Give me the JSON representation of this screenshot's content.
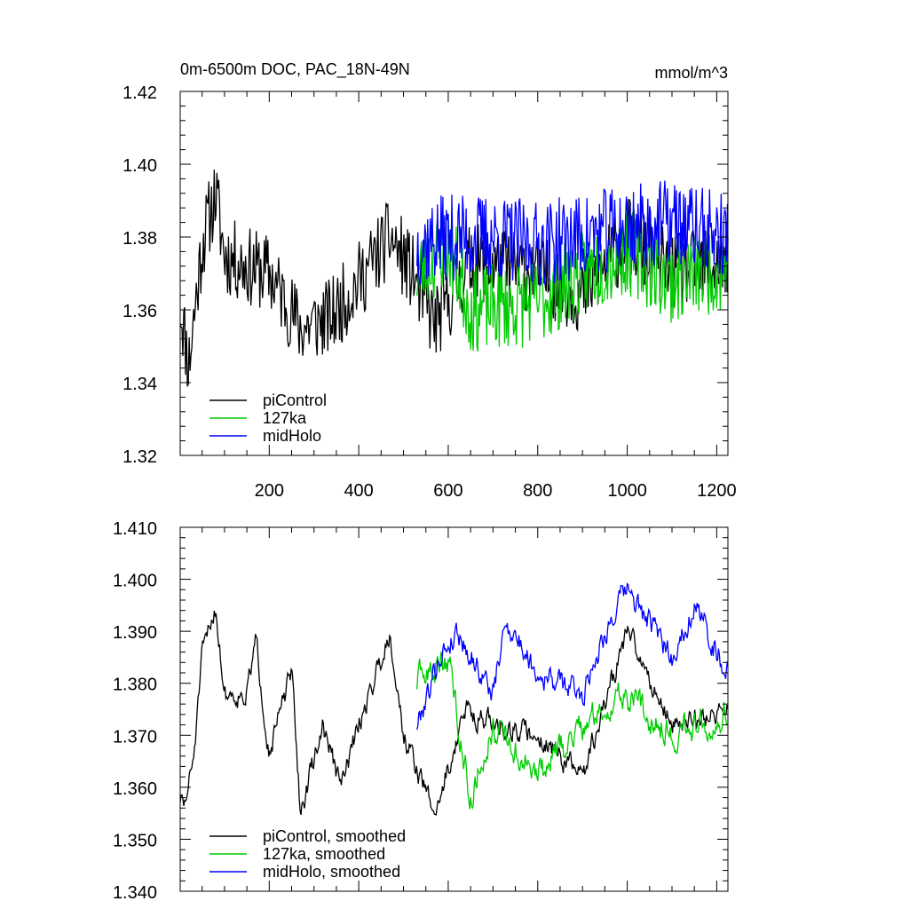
{
  "chart_data": [
    {
      "type": "line",
      "title": "0m-6500m DOC, PAC_18N-49N",
      "units": "mmol/m^3",
      "xlabel": "",
      "ylabel": "",
      "xlim": [
        1,
        1225
      ],
      "ylim": [
        1.32,
        1.42
      ],
      "x_ticks": [
        200,
        400,
        600,
        800,
        1000,
        1200
      ],
      "x_tick_labels": [
        "200",
        "400",
        "600",
        "800",
        "1000",
        "1200"
      ],
      "y_ticks": [
        1.32,
        1.34,
        1.36,
        1.38,
        1.4,
        1.42
      ],
      "y_tick_labels": [
        "1.32",
        "1.34",
        "1.36",
        "1.38",
        "1.40",
        "1.42"
      ],
      "legend_position": "bottom-left",
      "series": [
        {
          "name": "piControl",
          "color": "#000000",
          "x_start": 1,
          "x_end": 1225,
          "mean": 1.372,
          "noise": 0.011,
          "seed": 11,
          "anchors": [
            [
              1,
              1.362
            ],
            [
              20,
              1.345
            ],
            [
              50,
              1.378
            ],
            [
              80,
              1.392
            ],
            [
              100,
              1.375
            ],
            [
              150,
              1.372
            ],
            [
              200,
              1.37
            ],
            [
              270,
              1.355
            ],
            [
              340,
              1.358
            ],
            [
              400,
              1.368
            ],
            [
              470,
              1.38
            ],
            [
              520,
              1.37
            ],
            [
              570,
              1.356
            ],
            [
              650,
              1.373
            ],
            [
              800,
              1.37
            ],
            [
              900,
              1.364
            ],
            [
              1000,
              1.38
            ],
            [
              1100,
              1.37
            ],
            [
              1225,
              1.373
            ]
          ]
        },
        {
          "name": "127ka",
          "color": "#00cc00",
          "x_start": 530,
          "x_end": 1225,
          "mean": 1.37,
          "noise": 0.012,
          "seed": 23,
          "anchors": [
            [
              530,
              1.37
            ],
            [
              600,
              1.378
            ],
            [
              650,
              1.36
            ],
            [
              800,
              1.362
            ],
            [
              900,
              1.37
            ],
            [
              1000,
              1.376
            ],
            [
              1100,
              1.368
            ],
            [
              1225,
              1.372
            ]
          ]
        },
        {
          "name": "midHolo",
          "color": "#0000ff",
          "x_start": 530,
          "x_end": 1225,
          "mean": 1.38,
          "noise": 0.012,
          "seed": 37,
          "anchors": [
            [
              530,
              1.378
            ],
            [
              600,
              1.38
            ],
            [
              700,
              1.38
            ],
            [
              800,
              1.378
            ],
            [
              900,
              1.38
            ],
            [
              1000,
              1.383
            ],
            [
              1100,
              1.384
            ],
            [
              1225,
              1.38
            ]
          ]
        }
      ]
    },
    {
      "type": "line",
      "title": "",
      "xlabel": "",
      "ylabel": "",
      "xlim": [
        1,
        1225
      ],
      "ylim": [
        1.34,
        1.41
      ],
      "x_ticks": [
        200,
        400,
        600,
        800,
        1000,
        1200
      ],
      "y_ticks": [
        1.34,
        1.35,
        1.36,
        1.37,
        1.38,
        1.39,
        1.4,
        1.41
      ],
      "y_tick_labels": [
        "1.340",
        "1.350",
        "1.360",
        "1.370",
        "1.380",
        "1.390",
        "1.400",
        "1.410"
      ],
      "legend_position": "bottom-left",
      "series": [
        {
          "name": "piControl, smoothed",
          "color": "#000000",
          "x_start": 1,
          "x_end": 1225,
          "noise": 0.0045,
          "seed": 51,
          "anchors": [
            [
              1,
              1.358
            ],
            [
              10,
              1.356
            ],
            [
              30,
              1.365
            ],
            [
              50,
              1.385
            ],
            [
              80,
              1.395
            ],
            [
              100,
              1.378
            ],
            [
              150,
              1.378
            ],
            [
              170,
              1.388
            ],
            [
              200,
              1.367
            ],
            [
              250,
              1.382
            ],
            [
              270,
              1.355
            ],
            [
              320,
              1.372
            ],
            [
              360,
              1.36
            ],
            [
              400,
              1.372
            ],
            [
              470,
              1.39
            ],
            [
              500,
              1.37
            ],
            [
              570,
              1.355
            ],
            [
              640,
              1.375
            ],
            [
              700,
              1.372
            ],
            [
              800,
              1.37
            ],
            [
              900,
              1.362
            ],
            [
              1000,
              1.39
            ],
            [
              1100,
              1.372
            ],
            [
              1225,
              1.375
            ]
          ]
        },
        {
          "name": "127ka, smoothed",
          "color": "#00cc00",
          "x_start": 530,
          "x_end": 1225,
          "noise": 0.006,
          "seed": 63,
          "anchors": [
            [
              530,
              1.38
            ],
            [
              600,
              1.385
            ],
            [
              650,
              1.358
            ],
            [
              700,
              1.372
            ],
            [
              800,
              1.362
            ],
            [
              900,
              1.372
            ],
            [
              1000,
              1.378
            ],
            [
              1100,
              1.37
            ],
            [
              1225,
              1.375
            ]
          ]
        },
        {
          "name": "midHolo, smoothed",
          "color": "#0000ff",
          "x_start": 530,
          "x_end": 1225,
          "noise": 0.005,
          "seed": 79,
          "anchors": [
            [
              530,
              1.372
            ],
            [
              580,
              1.385
            ],
            [
              620,
              1.39
            ],
            [
              700,
              1.378
            ],
            [
              730,
              1.392
            ],
            [
              800,
              1.382
            ],
            [
              900,
              1.378
            ],
            [
              950,
              1.39
            ],
            [
              1000,
              1.398
            ],
            [
              1100,
              1.385
            ],
            [
              1150,
              1.395
            ],
            [
              1225,
              1.382
            ]
          ]
        }
      ]
    }
  ]
}
